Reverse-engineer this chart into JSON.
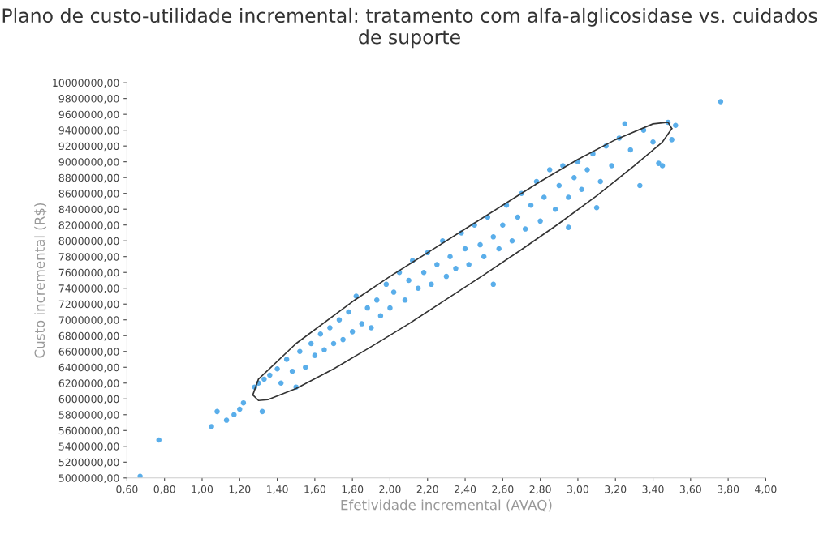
{
  "chart_data": {
    "type": "scatter",
    "title": "Plano de custo-utilidade incremental: tratamento com alfa-alglicosidase vs. cuidados de suporte",
    "xlabel": "Efetividade incremental (AVAQ)",
    "ylabel": "Custo incremental (R$)",
    "grid": false,
    "marker": "circle",
    "series": [
      {
        "color": "#5aaeea",
        "x": [
          0.67,
          0.77,
          1.05,
          1.08,
          1.13,
          1.17,
          1.2,
          1.22,
          1.32,
          1.5,
          2.55,
          2.95,
          3.1,
          3.25,
          3.33,
          3.43,
          3.45,
          3.5,
          3.52,
          3.76,
          1.28,
          1.3,
          1.33,
          1.36,
          1.4,
          1.42,
          1.45,
          1.48,
          1.52,
          1.55,
          1.58,
          1.6,
          1.63,
          1.65,
          1.68,
          1.7,
          1.73,
          1.75,
          1.78,
          1.8,
          1.82,
          1.85,
          1.88,
          1.9,
          1.93,
          1.95,
          1.98,
          2.0,
          2.02,
          2.05,
          2.08,
          2.1,
          2.12,
          2.15,
          2.18,
          2.2,
          2.22,
          2.25,
          2.28,
          2.3,
          2.32,
          2.35,
          2.38,
          2.4,
          2.42,
          2.45,
          2.48,
          2.5,
          2.52,
          2.55,
          2.58,
          2.6,
          2.62,
          2.65,
          2.68,
          2.7,
          2.72,
          2.75,
          2.78,
          2.8,
          2.82,
          2.85,
          2.88,
          2.9,
          2.92,
          2.95,
          2.98,
          3.0,
          3.02,
          3.05,
          3.08,
          3.12,
          3.15,
          3.18,
          3.22,
          3.28,
          3.35,
          3.4,
          3.48
        ],
        "values": [
          5020000,
          5480000,
          5650000,
          5840000,
          5730000,
          5800000,
          5870000,
          5950000,
          5840000,
          6150000,
          7450000,
          8170000,
          8420000,
          9480000,
          8700000,
          8980000,
          8950000,
          9280000,
          9460000,
          9760000,
          6150000,
          6200000,
          6250000,
          6300000,
          6380000,
          6200000,
          6500000,
          6350000,
          6600000,
          6400000,
          6700000,
          6550000,
          6820000,
          6620000,
          6900000,
          6700000,
          7000000,
          6750000,
          7100000,
          6850000,
          7300000,
          6950000,
          7150000,
          6900000,
          7250000,
          7050000,
          7450000,
          7150000,
          7350000,
          7600000,
          7250000,
          7500000,
          7750000,
          7400000,
          7600000,
          7850000,
          7450000,
          7700000,
          8000000,
          7550000,
          7800000,
          7650000,
          8100000,
          7900000,
          7700000,
          8200000,
          7950000,
          7800000,
          8300000,
          8050000,
          7900000,
          8200000,
          8450000,
          8000000,
          8300000,
          8600000,
          8150000,
          8450000,
          8750000,
          8250000,
          8550000,
          8900000,
          8400000,
          8700000,
          8950000,
          8550000,
          8800000,
          9000000,
          8650000,
          8900000,
          9100000,
          8750000,
          9200000,
          8950000,
          9300000,
          9150000,
          9400000,
          9250000,
          9500000
        ]
      },
      {
        "type": "line",
        "color": "#333333",
        "marker": "none",
        "x": [
          1.27,
          1.3,
          1.5,
          1.8,
          2.0,
          2.2,
          2.4,
          2.6,
          2.8,
          3.0,
          3.2,
          3.4,
          3.48,
          3.5
        ],
        "values": [
          6050000,
          6250000,
          6700000,
          7230000,
          7550000,
          7850000,
          8150000,
          8450000,
          8750000,
          9030000,
          9280000,
          9480000,
          9500000,
          9420000
        ]
      },
      {
        "type": "line",
        "color": "#333333",
        "marker": "none",
        "x": [
          1.27,
          1.3,
          1.35,
          1.5,
          1.7,
          1.9,
          2.1,
          2.3,
          2.5,
          2.7,
          2.9,
          3.1,
          3.3,
          3.45,
          3.5
        ],
        "values": [
          6050000,
          5980000,
          5990000,
          6130000,
          6380000,
          6660000,
          6950000,
          7260000,
          7570000,
          7890000,
          8220000,
          8570000,
          8950000,
          9250000,
          9420000
        ]
      }
    ],
    "xlim": [
      0.6,
      4.0
    ],
    "xticks": [
      {
        "value": 0.6,
        "label": "0,60"
      },
      {
        "value": 0.8,
        "label": "0,80"
      },
      {
        "value": 1.0,
        "label": "1,00"
      },
      {
        "value": 1.2,
        "label": "1,20"
      },
      {
        "value": 1.4,
        "label": "1,40"
      },
      {
        "value": 1.6,
        "label": "1,60"
      },
      {
        "value": 1.8,
        "label": "1,80"
      },
      {
        "value": 2.0,
        "label": "2,00"
      },
      {
        "value": 2.2,
        "label": "2,20"
      },
      {
        "value": 2.4,
        "label": "2,40"
      },
      {
        "value": 2.6,
        "label": "2,60"
      },
      {
        "value": 2.8,
        "label": "2,80"
      },
      {
        "value": 3.0,
        "label": "3,00"
      },
      {
        "value": 3.2,
        "label": "3,20"
      },
      {
        "value": 3.4,
        "label": "3,40"
      },
      {
        "value": 3.6,
        "label": "3,60"
      },
      {
        "value": 3.8,
        "label": "3,80"
      },
      {
        "value": 4.0,
        "label": "4,00"
      }
    ],
    "ylim": [
      5000000,
      10000000
    ],
    "yticks": [
      {
        "value": 5000000,
        "label": "5000000,00"
      },
      {
        "value": 5200000,
        "label": "5200000,00"
      },
      {
        "value": 5400000,
        "label": "5400000,00"
      },
      {
        "value": 5600000,
        "label": "5600000,00"
      },
      {
        "value": 5800000,
        "label": "5800000,00"
      },
      {
        "value": 6000000,
        "label": "6000000,00"
      },
      {
        "value": 6200000,
        "label": "6200000,00"
      },
      {
        "value": 6400000,
        "label": "6400000,00"
      },
      {
        "value": 6600000,
        "label": "6600000,00"
      },
      {
        "value": 6800000,
        "label": "6800000,00"
      },
      {
        "value": 7000000,
        "label": "7000000,00"
      },
      {
        "value": 7200000,
        "label": "7200000,00"
      },
      {
        "value": 7400000,
        "label": "7400000,00"
      },
      {
        "value": 7600000,
        "label": "7600000,00"
      },
      {
        "value": 7800000,
        "label": "7800000,00"
      },
      {
        "value": 8000000,
        "label": "8000000,00"
      },
      {
        "value": 8200000,
        "label": "8200000,00"
      },
      {
        "value": 8400000,
        "label": "8400000,00"
      },
      {
        "value": 8600000,
        "label": "8600000,00"
      },
      {
        "value": 8800000,
        "label": "8800000,00"
      },
      {
        "value": 9000000,
        "label": "9000000,00"
      },
      {
        "value": 9200000,
        "label": "9200000,00"
      },
      {
        "value": 9400000,
        "label": "9400000,00"
      },
      {
        "value": 9600000,
        "label": "9600000,00"
      },
      {
        "value": 9800000,
        "label": "9800000,00"
      },
      {
        "value": 10000000,
        "label": "10000000,00"
      }
    ]
  }
}
